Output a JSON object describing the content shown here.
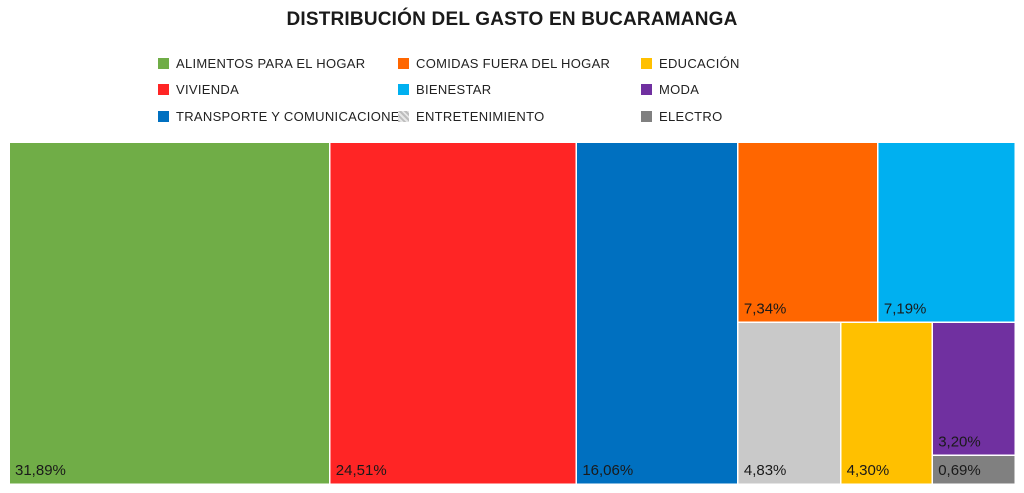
{
  "chart_data": {
    "type": "treemap",
    "title": "DISTRIBUCIÓN DEL GASTO EN BUCARAMANGA",
    "items": [
      {
        "name": "ALIMENTOS PARA EL HOGAR",
        "value": 31.89,
        "label": "31,89%",
        "color": "#70AD47"
      },
      {
        "name": "VIVIENDA",
        "value": 24.51,
        "label": "24,51%",
        "color": "#FF2525"
      },
      {
        "name": "TRANSPORTE Y COMUNICACIONES",
        "value": 16.06,
        "label": "16,06%",
        "color": "#0070C0"
      },
      {
        "name": "COMIDAS FUERA DEL HOGAR",
        "value": 7.34,
        "label": "7,34%",
        "color": "#FF6600"
      },
      {
        "name": "BIENESTAR",
        "value": 7.19,
        "label": "7,19%",
        "color": "#00B0F0"
      },
      {
        "name": "ENTRETENIMIENTO",
        "value": 4.83,
        "label": "4,83%",
        "color": "#C9C9C9"
      },
      {
        "name": "EDUCACIÓN",
        "value": 4.3,
        "label": "4,30%",
        "color": "#FFC000"
      },
      {
        "name": "MODA",
        "value": 3.2,
        "label": "3,20%",
        "color": "#7030A0"
      },
      {
        "name": "ELECTRO",
        "value": 0.69,
        "label": "0,69%",
        "color": "#808080"
      }
    ],
    "legend_position": "top"
  }
}
